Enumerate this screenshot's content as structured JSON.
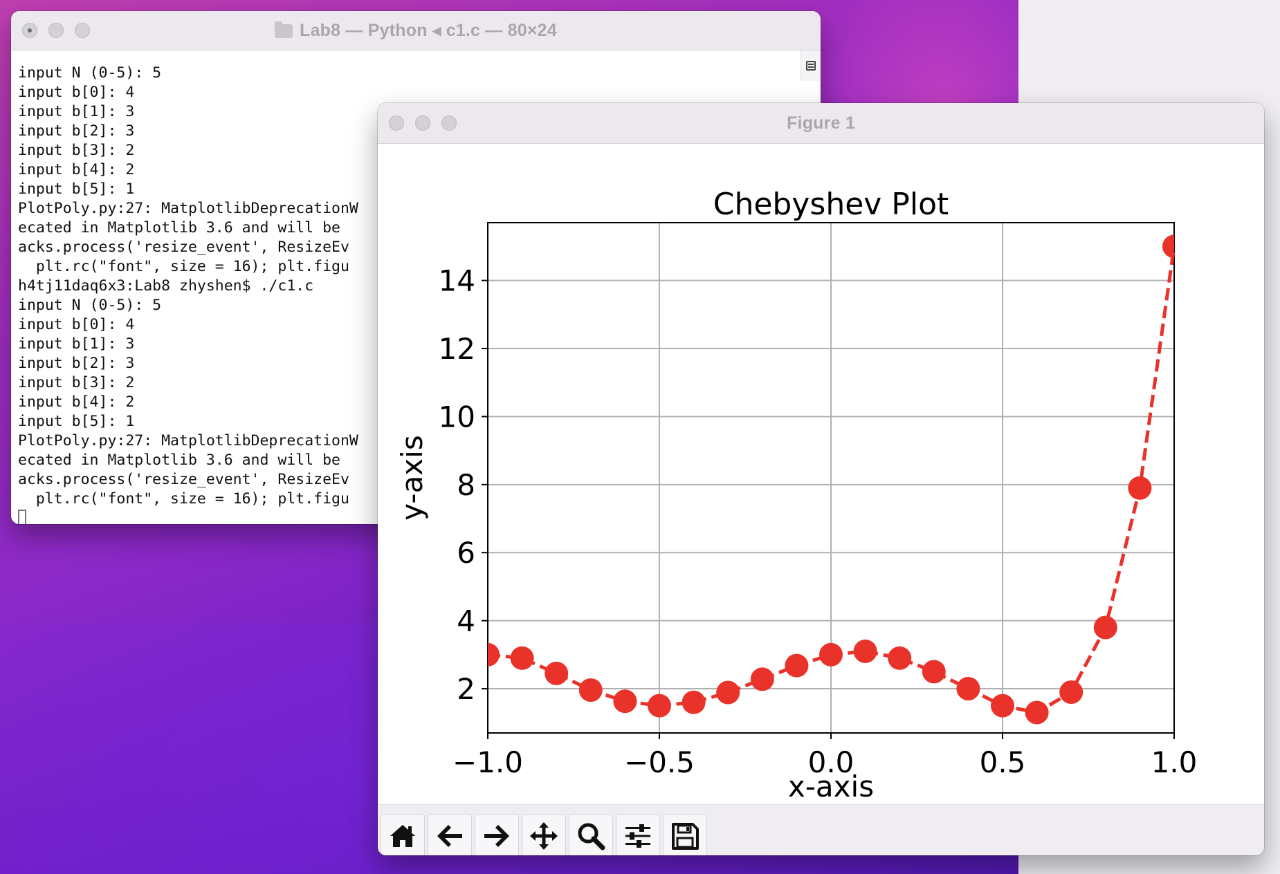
{
  "terminal": {
    "title": "Lab8 — Python ◂ c1.c — 80×24",
    "lines": [
      "input N (0-5): 5",
      "input b[0]: 4",
      "input b[1]: 3",
      "input b[2]: 3",
      "input b[3]: 2",
      "input b[4]: 2",
      "input b[5]: 1",
      "PlotPoly.py:27: MatplotlibDeprecationW",
      "ecated in Matplotlib 3.6 and will be ",
      "acks.process('resize_event', ResizeEv",
      "  plt.rc(\"font\", size = 16); plt.figu",
      "h4tj11daq6x3:Lab8 zhyshen$ ./c1.c",
      "input N (0-5): 5",
      "input b[0]: 4",
      "input b[1]: 3",
      "input b[2]: 3",
      "input b[3]: 2",
      "input b[4]: 2",
      "input b[5]: 1",
      "PlotPoly.py:27: MatplotlibDeprecationW",
      "ecated in Matplotlib 3.6 and will be ",
      "acks.process('resize_event', ResizeEv",
      "  plt.rc(\"font\", size = 16); plt.figu"
    ]
  },
  "figure": {
    "title": "Figure 1",
    "toolbar": [
      {
        "name": "home",
        "icon": "home-icon"
      },
      {
        "name": "back",
        "icon": "arrow-left-icon"
      },
      {
        "name": "forward",
        "icon": "arrow-right-icon"
      },
      {
        "name": "pan",
        "icon": "move-icon"
      },
      {
        "name": "zoom",
        "icon": "magnifier-icon"
      },
      {
        "name": "configure-subplots",
        "icon": "sliders-icon"
      },
      {
        "name": "save",
        "icon": "floppy-disk-icon"
      }
    ]
  },
  "chart_data": {
    "type": "line",
    "title": "Chebyshev Plot",
    "xlabel": "x-axis",
    "ylabel": "y-axis",
    "xlim": [
      -1.0,
      1.0
    ],
    "ylim": [
      0.7,
      15.7
    ],
    "xticks": [
      -1.0,
      -0.5,
      0.0,
      0.5,
      1.0
    ],
    "xtick_labels": [
      "−1.0",
      "−0.5",
      "0.0",
      "0.5",
      "1.0"
    ],
    "yticks": [
      2,
      4,
      6,
      8,
      10,
      12,
      14
    ],
    "ytick_labels": [
      "2",
      "4",
      "6",
      "8",
      "10",
      "12",
      "14"
    ],
    "grid": true,
    "series": [
      {
        "color": "#e8322a",
        "linestyle": "dashed",
        "marker": "circle",
        "x": [
          -1.0,
          -0.9,
          -0.8,
          -0.7,
          -0.6,
          -0.5,
          -0.4,
          -0.3,
          -0.2,
          -0.1,
          0.0,
          0.1,
          0.2,
          0.3,
          0.4,
          0.5,
          0.6,
          0.7,
          0.8,
          0.9,
          1.0
        ],
        "y": [
          3.0,
          2.9,
          2.45,
          1.96,
          1.63,
          1.5,
          1.6,
          1.89,
          2.28,
          2.68,
          3.0,
          3.1,
          2.9,
          2.5,
          2.0,
          1.5,
          1.3,
          1.9,
          3.8,
          7.9,
          15.0
        ]
      }
    ]
  }
}
